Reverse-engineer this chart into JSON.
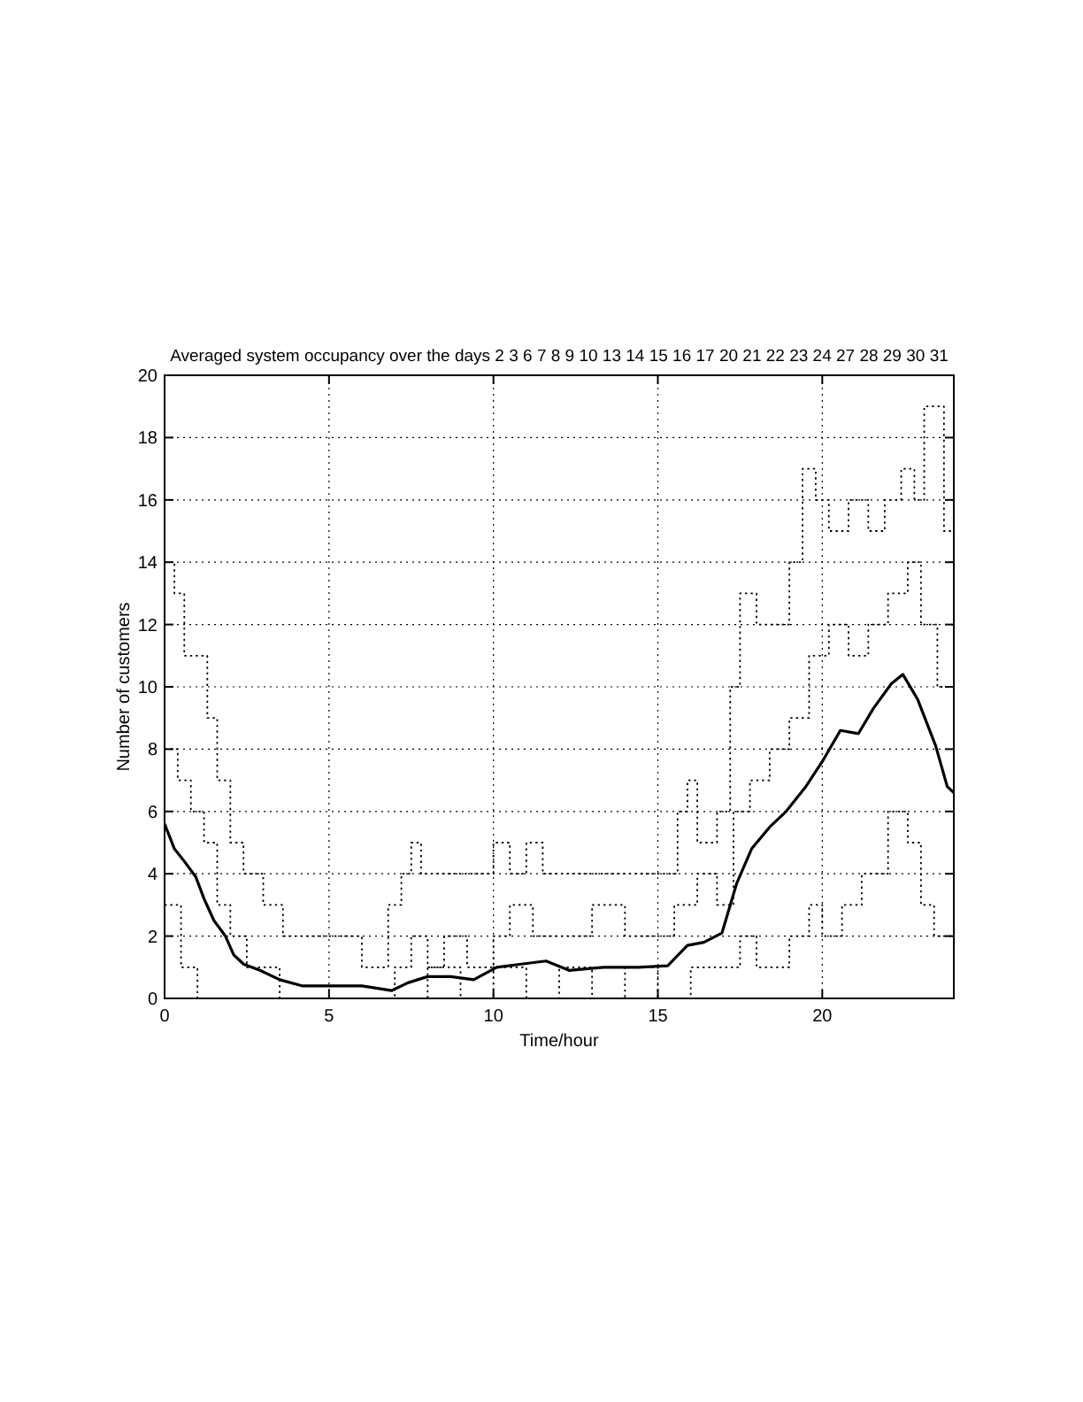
{
  "chart_data": {
    "type": "line",
    "title": "Averaged system occupancy over the days 2 3 6 7 8 9 10 13 14 15 16 17 20 21 22 23 24 27 28 29 30 31",
    "xlabel": "Time/hour",
    "ylabel": "Number of customers",
    "xlim": [
      0,
      24
    ],
    "xticks": [
      0,
      5,
      10,
      15,
      20
    ],
    "ylim": [
      0,
      20
    ],
    "yticks": [
      0,
      2,
      4,
      6,
      8,
      10,
      12,
      14,
      16,
      18,
      20
    ],
    "grid": true,
    "marker": "none",
    "series": [
      {
        "type": "step",
        "line_style": "dotted",
        "color": "#000000",
        "x": [
          0,
          0.3,
          0.6,
          1.0,
          1.3,
          1.6,
          2.0,
          2.4,
          3.0,
          3.6,
          4.5,
          6.0,
          6.8,
          7.2,
          7.5,
          7.8,
          8.5,
          9.5,
          10.0,
          10.5,
          11.0,
          11.5,
          12.5,
          13.5,
          15.0,
          15.6,
          15.9,
          16.2,
          16.8,
          17.2,
          17.5,
          18.0,
          18.5,
          19.0,
          19.4,
          19.8,
          20.2,
          20.8,
          21.4,
          21.9,
          22.4,
          22.8,
          23.1,
          23.4,
          23.7,
          24
        ],
        "values": [
          14,
          13,
          11,
          11,
          9,
          7,
          5,
          4,
          3,
          2,
          2,
          1,
          3,
          4,
          5,
          4,
          4,
          4,
          5,
          4,
          5,
          4,
          4,
          4,
          4,
          6,
          7,
          5,
          6,
          10,
          13,
          12,
          12,
          14,
          17,
          16,
          15,
          16,
          15,
          16,
          17,
          16,
          19,
          19,
          15,
          14
        ]
      },
      {
        "type": "step",
        "line_style": "dotted",
        "color": "#000000",
        "x": [
          0,
          0.4,
          0.8,
          1.2,
          1.6,
          2.0,
          2.5,
          3.0,
          3.5,
          7.0,
          7.5,
          8.0,
          8.5,
          9.2,
          10.0,
          10.5,
          11.2,
          12.0,
          13.0,
          14.0,
          15.0,
          15.5,
          16.2,
          16.8,
          17.3,
          17.8,
          18.4,
          19.0,
          19.6,
          20.2,
          20.8,
          21.4,
          22.0,
          22.6,
          23.0,
          23.5,
          24
        ],
        "values": [
          8,
          7,
          6,
          5,
          3,
          2,
          1,
          1,
          0,
          1,
          2,
          1,
          2,
          1,
          2,
          3,
          2,
          2,
          3,
          2,
          2,
          3,
          4,
          3,
          6,
          7,
          8,
          9,
          11,
          12,
          11,
          12,
          13,
          14,
          12,
          10,
          9
        ]
      },
      {
        "type": "step",
        "line_style": "dotted",
        "color": "#000000",
        "x": [
          0,
          0.5,
          1.0,
          7.5,
          8.0,
          9.0,
          10.0,
          11.0,
          12.0,
          13.0,
          14.0,
          15.0,
          16.0,
          17.0,
          17.5,
          18.0,
          19.0,
          19.6,
          20.0,
          20.6,
          21.2,
          22.0,
          22.6,
          23.0,
          23.4,
          24
        ],
        "values": [
          3,
          1,
          0,
          0,
          1,
          0,
          1,
          0,
          1,
          0,
          1,
          0,
          1,
          1,
          2,
          1,
          2,
          3,
          2,
          3,
          4,
          6,
          5,
          3,
          2,
          4
        ]
      },
      {
        "type": "line",
        "line_style": "solid",
        "color": "#000000",
        "x": [
          0,
          0.3,
          0.6,
          0.95,
          1.2,
          1.5,
          1.85,
          2.1,
          2.4,
          2.9,
          3.5,
          4.2,
          6.0,
          6.9,
          7.4,
          8.0,
          8.7,
          9.4,
          10.1,
          10.85,
          11.6,
          12.3,
          13.35,
          14.4,
          15.3,
          15.9,
          16.4,
          16.95,
          17.4,
          17.85,
          18.4,
          18.9,
          19.5,
          20.0,
          20.55,
          21.1,
          21.55,
          22.1,
          22.45,
          22.9,
          23.45,
          23.8,
          24
        ],
        "values": [
          5.6,
          4.8,
          4.4,
          3.9,
          3.2,
          2.5,
          2.0,
          1.4,
          1.1,
          0.9,
          0.6,
          0.4,
          0.4,
          0.25,
          0.5,
          0.7,
          0.7,
          0.6,
          1.0,
          1.1,
          1.2,
          0.9,
          1.0,
          1.0,
          1.05,
          1.7,
          1.8,
          2.1,
          3.7,
          4.8,
          5.5,
          6.0,
          6.8,
          7.6,
          8.6,
          8.5,
          9.3,
          10.1,
          10.4,
          9.6,
          8.1,
          6.8,
          6.6
        ]
      }
    ]
  }
}
